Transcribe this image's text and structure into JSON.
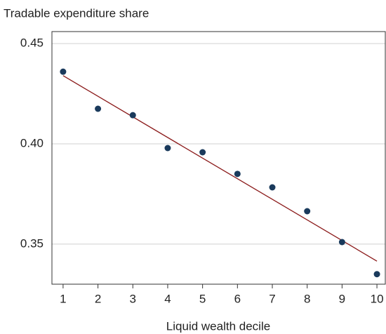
{
  "chart_data": {
    "type": "scatter",
    "x_label": "Liquid wealth decile",
    "y_label": "Tradable expenditure share",
    "x": [
      1,
      2,
      3,
      4,
      5,
      6,
      7,
      8,
      9,
      10
    ],
    "values": [
      0.436,
      0.4175,
      0.4143,
      0.3979,
      0.3958,
      0.385,
      0.3783,
      0.3664,
      0.351,
      0.335
    ],
    "color": "#1a3a5c",
    "fit": {
      "x": [
        1,
        10
      ],
      "values": [
        0.434,
        0.3415
      ],
      "color": "#8b1a1a"
    },
    "xlim": [
      0.68,
      10.24
    ],
    "xticks": [
      1,
      2,
      3,
      4,
      5,
      6,
      7,
      8,
      9,
      10
    ],
    "ylim": [
      0.33,
      0.456
    ],
    "yticks": [
      {
        "value": 0.35,
        "label": "0.35"
      },
      {
        "value": 0.4,
        "label": "0.40"
      },
      {
        "value": 0.45,
        "label": "0.45"
      }
    ],
    "grid": true
  }
}
